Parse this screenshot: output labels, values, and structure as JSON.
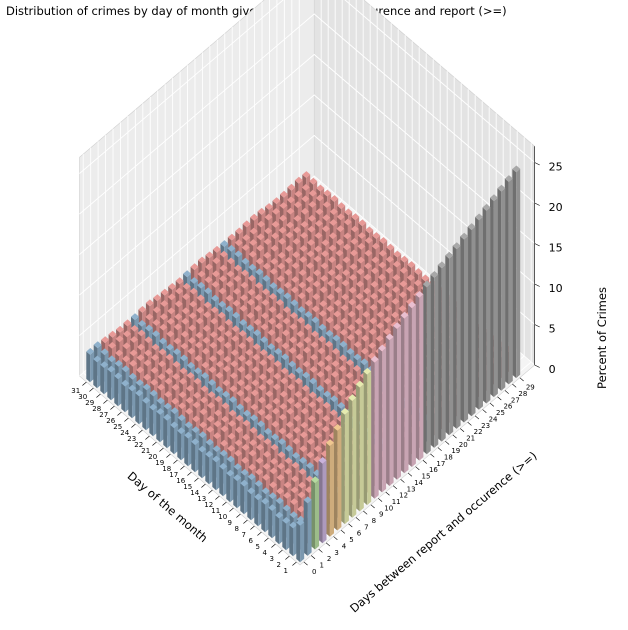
{
  "chart_data": {
    "type": "bar3d",
    "title": "Distribution of crimes by day of month given days between occurence and report (>=)",
    "xlabel": "Day of the month",
    "ylabel": "Days between report and occurence (>=)",
    "zlabel": "Percent of Crimes",
    "x_ticks": [
      "1",
      "2",
      "3",
      "4",
      "5",
      "6",
      "7",
      "8",
      "9",
      "10",
      "11",
      "12",
      "13",
      "14",
      "15",
      "16",
      "17",
      "18",
      "19",
      "20",
      "21",
      "22",
      "23",
      "24",
      "25",
      "26",
      "27",
      "28",
      "29",
      "30",
      "31"
    ],
    "y_ticks": [
      "0",
      "1",
      "2",
      "3",
      "4",
      "5",
      "6",
      "7",
      "8",
      "9",
      "10",
      "11",
      "12",
      "13",
      "14",
      "15",
      "16",
      "17",
      "18",
      "19",
      "20",
      "21",
      "22",
      "23",
      "24",
      "25",
      "26",
      "27",
      "28",
      "29"
    ],
    "z_ticks": [
      "0",
      "5",
      "10",
      "15",
      "20",
      "25"
    ],
    "zlim": [
      0,
      27
    ],
    "day1_percent_by_days_between": [
      4.5,
      6.5,
      8.2,
      9.8,
      11.2,
      12.3,
      13.5,
      14.4,
      15.3,
      16.1,
      16.8,
      17.4,
      18.0,
      18.6,
      19.1,
      19.6,
      20.1,
      20.6,
      21.0,
      21.4,
      21.8,
      22.2,
      22.6,
      23.0,
      23.4,
      23.8,
      24.2,
      24.6,
      25.0,
      25.4
    ],
    "typical_day_percent": [
      3.3,
      3.3,
      3.2,
      3.2,
      3.1,
      3.1,
      3.0,
      3.0,
      3.0,
      2.9,
      2.9,
      2.9,
      2.8,
      2.8,
      2.8,
      2.8,
      2.7,
      2.7,
      2.7,
      2.7,
      2.6,
      2.6,
      2.6,
      2.6,
      2.5,
      2.5,
      2.5,
      2.5,
      2.5,
      2.4
    ],
    "colors": {
      "blue": "#8fb1cc",
      "red": "#e89a97",
      "gray": "#a8a8a8",
      "pink": "#e9bfd0",
      "yellow": "#e6ebb0",
      "orange": "#f0c890",
      "lavender": "#c9b3dc",
      "green": "#b5dba0",
      "pane_left": "#ececec",
      "pane_right": "#e3e3e3",
      "pane_floor": "#f4f4f4",
      "grid": "#ffffff"
    }
  }
}
